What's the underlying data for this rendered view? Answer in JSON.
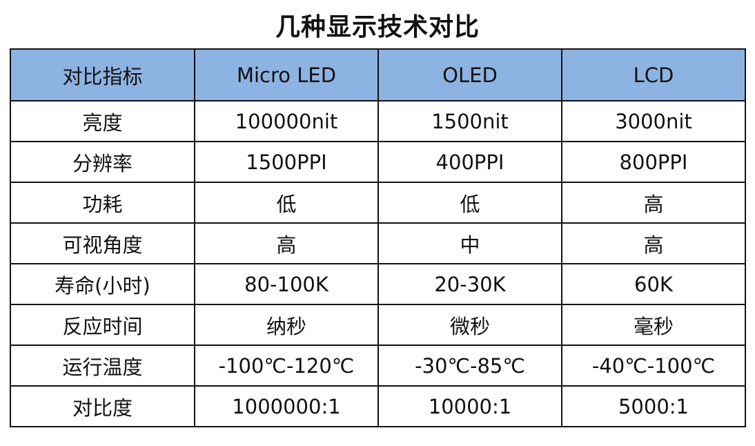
{
  "title": "几种显示技术对比",
  "colors": {
    "header_bg": "#8DB3E2",
    "border": "#111111",
    "text": "#111111"
  },
  "table": {
    "headers": [
      "对比指标",
      "Micro LED",
      "OLED",
      "LCD"
    ],
    "rows": [
      [
        "亮度",
        "100000nit",
        "1500nit",
        "3000nit"
      ],
      [
        "分辨率",
        "1500PPI",
        "400PPI",
        "800PPI"
      ],
      [
        "功耗",
        "低",
        "低",
        "高"
      ],
      [
        "可视角度",
        "高",
        "中",
        "高"
      ],
      [
        "寿命(小时)",
        "80-100K",
        "20-30K",
        "60K"
      ],
      [
        "反应时间",
        "纳秒",
        "微秒",
        "毫秒"
      ],
      [
        "运行温度",
        "-100℃-120℃",
        "-30℃-85℃",
        "-40℃-100℃"
      ],
      [
        "对比度",
        "1000000:1",
        "10000:1",
        "5000:1"
      ]
    ]
  }
}
